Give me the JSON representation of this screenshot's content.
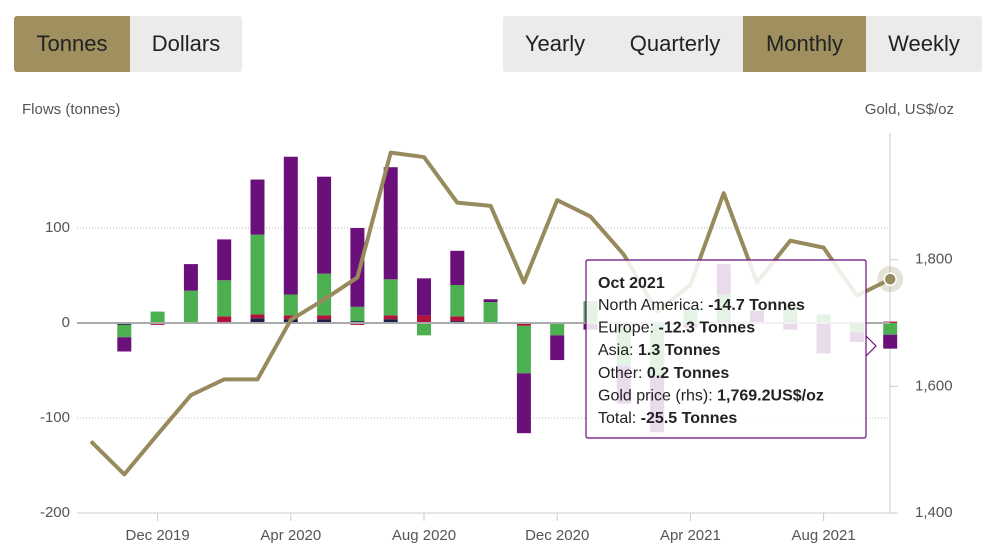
{
  "controls": {
    "units": [
      "Tonnes",
      "Dollars"
    ],
    "units_active": 0,
    "periods": [
      "Yearly",
      "Quarterly",
      "Monthly",
      "Weekly"
    ],
    "periods_active": 2
  },
  "chart_data": {
    "type": "stacked-bar-line",
    "y_label": "Flows (tonnes)",
    "y2_label": "Gold, US$/oz",
    "categories": [
      null,
      null,
      "Dec 2019",
      null,
      null,
      null,
      "Apr 2020",
      null,
      null,
      null,
      "Aug 2020",
      null,
      null,
      null,
      "Dec 2020",
      null,
      null,
      null,
      "Apr 2021",
      null,
      null,
      null,
      "Aug 2021",
      null,
      null
    ],
    "series": [
      {
        "name": "North America",
        "color": "#6b0f7a",
        "values": [
          null,
          -15,
          0,
          28,
          43,
          58,
          145,
          102,
          83,
          118,
          39,
          36,
          3,
          -63,
          -26,
          -7,
          -40,
          -60,
          -5,
          32,
          12,
          -7,
          -32,
          -10,
          -14.7
        ]
      },
      {
        "name": "Europe",
        "color": "#4caf50",
        "values": [
          null,
          -13,
          12,
          33,
          38,
          84,
          22,
          44,
          15,
          38,
          -13,
          33,
          22,
          -50,
          -13,
          22,
          -45,
          -55,
          15,
          28,
          1,
          18,
          9,
          -10,
          -12.3
        ]
      },
      {
        "name": "Asia",
        "color": "#b0123a",
        "values": [
          null,
          0,
          -2,
          0,
          7,
          4,
          4,
          4,
          -2,
          4,
          7,
          5,
          0,
          -3,
          1,
          1,
          1,
          1,
          1,
          1,
          0,
          0,
          0,
          0,
          1.3
        ]
      },
      {
        "name": "Other",
        "color": "#1b1f4a",
        "values": [
          null,
          -2,
          0,
          1,
          0,
          5,
          4,
          4,
          2,
          4,
          1,
          2,
          -1,
          0,
          0,
          0,
          0,
          0,
          0,
          1,
          0,
          0,
          0,
          0,
          0.2
        ]
      },
      {
        "name": "Gold price",
        "color": "#978a5c",
        "axis": "y2",
        "line": true,
        "values": [
          1513,
          1461,
          1524,
          1586,
          1611,
          1611,
          1705,
          1737,
          1772,
          1969,
          1962,
          1890,
          1885,
          1764,
          1894,
          1868,
          1808,
          1718,
          1760,
          1905,
          1764,
          1830,
          1819,
          1743,
          1769.2
        ]
      }
    ],
    "ylim": [
      -200,
      200
    ],
    "yticks": [
      -200,
      -100,
      0,
      100
    ],
    "y2lim": [
      1400,
      2000
    ],
    "y2ticks": [
      {
        "value": 1400,
        "label": "1,400"
      },
      {
        "value": 1600,
        "label": "1,600"
      },
      {
        "value": 1800,
        "label": "1,800"
      }
    ],
    "grid": true,
    "tooltip": {
      "title": "Oct 2021",
      "index": 24,
      "rows": [
        {
          "label": "North America: ",
          "value": "-14.7 Tonnes"
        },
        {
          "label": "Europe: ",
          "value": "-12.3 Tonnes"
        },
        {
          "label": "Asia: ",
          "value": "1.3 Tonnes"
        },
        {
          "label": "Other: ",
          "value": "0.2 Tonnes"
        },
        {
          "label": "Gold price (rhs): ",
          "value": "1,769.2US$/oz"
        },
        {
          "label": "Total: ",
          "value": "-25.5 Tonnes"
        }
      ]
    }
  }
}
